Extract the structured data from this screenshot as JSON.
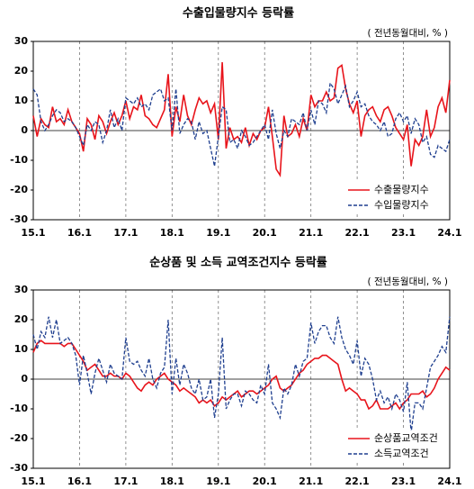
{
  "chart_data": [
    {
      "type": "line",
      "title": "수출입물량지수 등락률",
      "subtitle": "( 전년동월대비, % )",
      "categories": [
        "15.1",
        null,
        null,
        null,
        null,
        null,
        null,
        null,
        null,
        null,
        null,
        null,
        "16.1",
        null,
        null,
        null,
        null,
        null,
        null,
        null,
        null,
        null,
        null,
        null,
        "17.1",
        null,
        null,
        null,
        null,
        null,
        null,
        null,
        null,
        null,
        null,
        null,
        "18.1",
        null,
        null,
        null,
        null,
        null,
        null,
        null,
        null,
        null,
        null,
        null,
        "19.1",
        null,
        null,
        null,
        null,
        null,
        null,
        null,
        null,
        null,
        null,
        null,
        "20.1",
        null,
        null,
        null,
        null,
        null,
        null,
        null,
        null,
        null,
        null,
        null,
        "21.1",
        null,
        null,
        null,
        null,
        null,
        null,
        null,
        null,
        null,
        null,
        null,
        "22.1",
        null,
        null,
        null,
        null,
        null,
        null,
        null,
        null,
        null,
        null,
        null,
        "23.1",
        null,
        null,
        null,
        null,
        null,
        null,
        null,
        null,
        null,
        null,
        null,
        "24.1"
      ],
      "series": [
        {
          "name": "수출물량지수",
          "color": "#e8141b",
          "dash": false,
          "values": [
            5,
            -2,
            4,
            2,
            1,
            8,
            3,
            4,
            2,
            7,
            3,
            1,
            -1,
            -7,
            4,
            2,
            -3,
            5,
            3,
            -1,
            3,
            6,
            2,
            5,
            10,
            4,
            8,
            7,
            12,
            5,
            4,
            2,
            1,
            4,
            7,
            19,
            -2,
            8,
            3,
            12,
            5,
            2,
            7,
            11,
            9,
            10,
            6,
            9,
            -3,
            23,
            -6,
            1,
            -3,
            -2,
            -4,
            1,
            -5,
            -1,
            -3,
            0,
            1,
            8,
            -2,
            -13,
            -15,
            5,
            -2,
            -1,
            2,
            -2,
            4,
            0,
            12,
            8,
            10,
            10,
            13,
            10,
            11,
            21,
            22,
            14,
            9,
            6,
            10,
            -2,
            5,
            7,
            8,
            5,
            3,
            7,
            8,
            5,
            1,
            -1,
            -3,
            2,
            -12,
            -3,
            -5,
            -2,
            7,
            -2,
            1,
            8,
            11,
            6,
            17
          ]
        },
        {
          "name": "수입물량지수",
          "color": "#1f3f8f",
          "dash": true,
          "values": [
            14,
            12,
            3,
            0,
            2,
            5,
            7,
            6,
            3,
            4,
            3,
            1,
            -2,
            -5,
            2,
            0,
            3,
            2,
            -4,
            0,
            7,
            1,
            4,
            0,
            11,
            10,
            9,
            11,
            8,
            9,
            7,
            12,
            13,
            14,
            10,
            11,
            0,
            14,
            -1,
            2,
            4,
            3,
            -3,
            3,
            -1,
            0,
            -6,
            -12,
            -2,
            8,
            7,
            -4,
            -3,
            -6,
            0,
            -2,
            -5,
            -4,
            -2,
            0,
            2,
            -3,
            7,
            -1,
            -6,
            0,
            -2,
            4,
            3,
            2,
            6,
            0,
            7,
            2,
            10,
            9,
            6,
            16,
            14,
            9,
            12,
            15,
            8,
            10,
            13,
            8,
            9,
            5,
            3,
            2,
            0,
            3,
            -2,
            -1,
            4,
            6,
            3,
            5,
            -1,
            4,
            2,
            -4,
            -2,
            -8,
            -9,
            -5,
            -6,
            -7,
            -3
          ]
        }
      ],
      "ylim": [
        -30,
        30
      ],
      "yticks": [
        -30,
        -20,
        -10,
        0,
        10,
        20,
        30
      ],
      "legend": "lower right"
    },
    {
      "type": "line",
      "title": "순상품 및 소득 교역조건지수 등락률",
      "subtitle": "( 전년동월대비, % )",
      "categories": [
        "15.1",
        null,
        null,
        null,
        null,
        null,
        null,
        null,
        null,
        null,
        null,
        null,
        "16.1",
        null,
        null,
        null,
        null,
        null,
        null,
        null,
        null,
        null,
        null,
        null,
        "17.1",
        null,
        null,
        null,
        null,
        null,
        null,
        null,
        null,
        null,
        null,
        null,
        "18.1",
        null,
        null,
        null,
        null,
        null,
        null,
        null,
        null,
        null,
        null,
        null,
        "19.1",
        null,
        null,
        null,
        null,
        null,
        null,
        null,
        null,
        null,
        null,
        null,
        "20.1",
        null,
        null,
        null,
        null,
        null,
        null,
        null,
        null,
        null,
        null,
        null,
        "21.1",
        null,
        null,
        null,
        null,
        null,
        null,
        null,
        null,
        null,
        null,
        null,
        "22.1",
        null,
        null,
        null,
        null,
        null,
        null,
        null,
        null,
        null,
        null,
        null,
        "23.1",
        null,
        null,
        null,
        null,
        null,
        null,
        null,
        null,
        null,
        null,
        null,
        "24.1"
      ],
      "series": [
        {
          "name": "순상품교역조건",
          "color": "#e8141b",
          "dash": false,
          "values": [
            9,
            12,
            13,
            12,
            12,
            12,
            12,
            12,
            11,
            12,
            12,
            10,
            8,
            6,
            3,
            4,
            5,
            3,
            1,
            1,
            2,
            1,
            1,
            0,
            2,
            1,
            -1,
            -3,
            -4,
            -2,
            -1,
            -2,
            0,
            1,
            2,
            0,
            -1,
            -2,
            -4,
            -3,
            -4,
            -5,
            -6,
            -8,
            -7,
            -8,
            -7,
            -9,
            -8,
            -6,
            -7,
            -6,
            -5,
            -4,
            -6,
            -5,
            -4,
            -4,
            -5,
            -4,
            -3,
            -2,
            0,
            1,
            -3,
            -4,
            -3,
            -2,
            0,
            2,
            3,
            5,
            6,
            7,
            7,
            8,
            8,
            7,
            6,
            5,
            0,
            -4,
            -3,
            -4,
            -5,
            -7,
            -7,
            -10,
            -9,
            -7,
            -10,
            -10,
            -10,
            -9,
            -8,
            -10,
            -8,
            -7,
            -5,
            -5,
            -5,
            -4,
            -6,
            -5,
            -3,
            0,
            2,
            4,
            3
          ]
        },
        {
          "name": "소득교역조건",
          "color": "#1f3f8f",
          "dash": true,
          "values": [
            15,
            10,
            16,
            14,
            21,
            14,
            20,
            12,
            13,
            14,
            12,
            8,
            -2,
            8,
            2,
            -5,
            2,
            7,
            3,
            -1,
            5,
            2,
            1,
            0,
            14,
            6,
            5,
            6,
            3,
            1,
            7,
            0,
            -3,
            2,
            4,
            20,
            -5,
            7,
            -2,
            5,
            2,
            -3,
            -5,
            0,
            -7,
            -6,
            0,
            -13,
            -5,
            14,
            -10,
            -7,
            -5,
            -5,
            -9,
            -4,
            -5,
            -7,
            -8,
            -2,
            -5,
            5,
            -8,
            -10,
            -13,
            -3,
            -5,
            -2,
            5,
            1,
            6,
            7,
            19,
            12,
            16,
            18,
            18,
            14,
            12,
            21,
            14,
            10,
            8,
            5,
            13,
            1,
            7,
            5,
            0,
            -7,
            -4,
            -8,
            -6,
            -10,
            -5,
            -7,
            -11,
            -1,
            -18,
            -8,
            -8,
            -10,
            -3,
            4,
            6,
            8,
            11,
            9,
            21
          ]
        }
      ],
      "ylim": [
        -30,
        30
      ],
      "yticks": [
        -30,
        -20,
        -10,
        0,
        10,
        20,
        30
      ],
      "legend": "lower right"
    }
  ]
}
